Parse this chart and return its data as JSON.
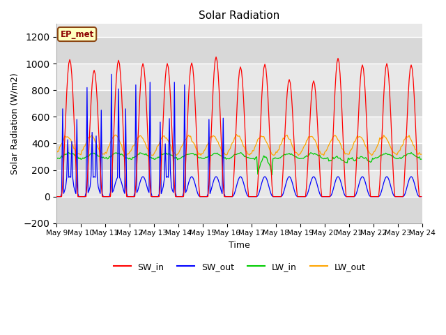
{
  "title": "Solar Radiation",
  "xlabel": "Time",
  "ylabel": "Solar Radiation (W/m2)",
  "ylim": [
    -200,
    1300
  ],
  "yticks": [
    -200,
    0,
    200,
    400,
    600,
    800,
    1000,
    1200
  ],
  "start_day": 9,
  "end_day": 24,
  "colors": {
    "SW_in": "#FF0000",
    "SW_out": "#0000FF",
    "LW_in": "#00CC00",
    "LW_out": "#FFA500"
  },
  "bg_light": "#DCDCDC",
  "bg_dark": "#C8C8C8",
  "annotation_text": "EP_met",
  "annotation_bg": "#FFFFC0",
  "annotation_border": "#8B4513"
}
